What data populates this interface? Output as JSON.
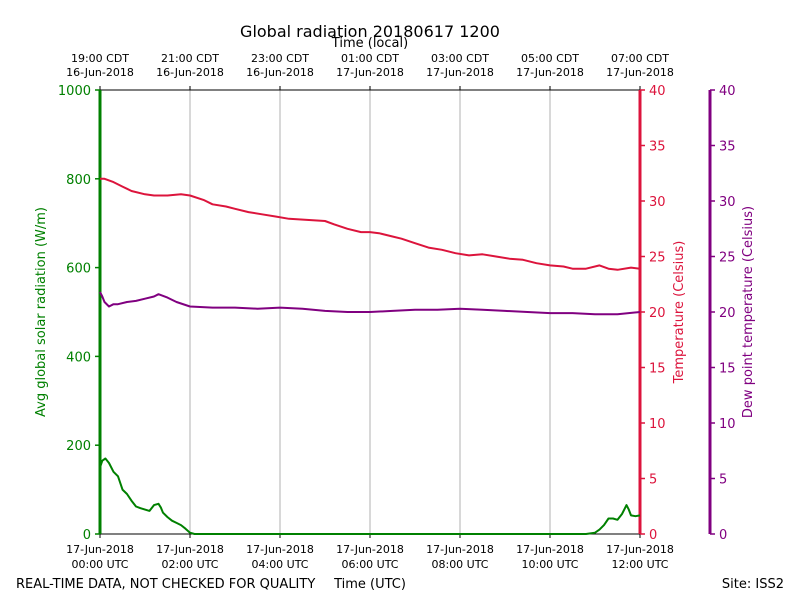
{
  "chart_data": {
    "type": "line",
    "title": "Global radiation 20180617 1200",
    "top_axis_label": "Time (local)",
    "xlabel": "Time (UTC)",
    "footer_left": "REAL-TIME DATA, NOT CHECKED FOR QUALITY",
    "footer_right": "Site: ISS2",
    "x_unit": "hours since 17-Jun-2018 00:00 UTC",
    "xlim": [
      0,
      12
    ],
    "bottom_ticks": [
      {
        "x": 0,
        "l1": "17-Jun-2018",
        "l2": "00:00 UTC"
      },
      {
        "x": 2,
        "l1": "17-Jun-2018",
        "l2": "02:00 UTC"
      },
      {
        "x": 4,
        "l1": "17-Jun-2018",
        "l2": "04:00 UTC"
      },
      {
        "x": 6,
        "l1": "17-Jun-2018",
        "l2": "06:00 UTC"
      },
      {
        "x": 8,
        "l1": "17-Jun-2018",
        "l2": "08:00 UTC"
      },
      {
        "x": 10,
        "l1": "17-Jun-2018",
        "l2": "10:00 UTC"
      },
      {
        "x": 12,
        "l1": "17-Jun-2018",
        "l2": "12:00 UTC"
      }
    ],
    "top_ticks": [
      {
        "x": 0,
        "l1": "19:00 CDT",
        "l2": "16-Jun-2018"
      },
      {
        "x": 2,
        "l1": "21:00 CDT",
        "l2": "16-Jun-2018"
      },
      {
        "x": 4,
        "l1": "23:00 CDT",
        "l2": "16-Jun-2018"
      },
      {
        "x": 6,
        "l1": "01:00 CDT",
        "l2": "17-Jun-2018"
      },
      {
        "x": 8,
        "l1": "03:00 CDT",
        "l2": "17-Jun-2018"
      },
      {
        "x": 10,
        "l1": "05:00 CDT",
        "l2": "17-Jun-2018"
      },
      {
        "x": 12,
        "l1": "07:00 CDT",
        "l2": "17-Jun-2018"
      }
    ],
    "axes": {
      "radiation": {
        "label": "Avg global solar radiation (W/m)",
        "ylim": [
          0,
          1000
        ],
        "ticks": [
          0,
          200,
          400,
          600,
          800,
          1000
        ],
        "color": "#008000"
      },
      "temperature": {
        "label": "Temperature (Celsius)",
        "ylim": [
          0,
          40
        ],
        "ticks": [
          0,
          5,
          10,
          15,
          20,
          25,
          30,
          35,
          40
        ],
        "color": "#dc143c"
      },
      "dewpoint": {
        "label": "Dew point temperature (Celsius)",
        "ylim": [
          0,
          40
        ],
        "ticks": [
          0,
          5,
          10,
          15,
          20,
          25,
          30,
          35,
          40
        ],
        "color": "#800080"
      }
    },
    "series": [
      {
        "name": "Global radiation",
        "axis": "radiation",
        "color": "#008000",
        "x": [
          0,
          0.05,
          0.12,
          0.2,
          0.3,
          0.4,
          0.5,
          0.6,
          0.7,
          0.8,
          0.9,
          1.0,
          1.1,
          1.2,
          1.3,
          1.35,
          1.4,
          1.5,
          1.6,
          1.7,
          1.8,
          1.9,
          2.0,
          2.1,
          2.2,
          2.5,
          3,
          4,
          5,
          6,
          7,
          8,
          9,
          10,
          10.8,
          11.0,
          11.1,
          11.2,
          11.3,
          11.4,
          11.5,
          11.6,
          11.7,
          11.75,
          11.8,
          11.9,
          12.0
        ],
        "y": [
          150,
          165,
          170,
          160,
          140,
          130,
          100,
          90,
          75,
          62,
          58,
          55,
          52,
          65,
          68,
          60,
          48,
          38,
          30,
          25,
          20,
          12,
          3,
          0,
          0,
          0,
          0,
          0,
          0,
          0,
          0,
          0,
          0,
          0,
          0,
          3,
          10,
          20,
          35,
          35,
          32,
          45,
          65,
          55,
          42,
          40,
          42
        ]
      },
      {
        "name": "Temperature",
        "axis": "temperature",
        "color": "#dc143c",
        "x": [
          0,
          0.1,
          0.3,
          0.5,
          0.7,
          1.0,
          1.2,
          1.5,
          1.8,
          2.0,
          2.3,
          2.5,
          2.8,
          3.0,
          3.3,
          3.6,
          3.9,
          4.2,
          4.6,
          5.0,
          5.2,
          5.5,
          5.8,
          6.0,
          6.2,
          6.5,
          6.7,
          7.0,
          7.3,
          7.6,
          7.9,
          8.2,
          8.5,
          8.8,
          9.1,
          9.4,
          9.7,
          10.0,
          10.3,
          10.5,
          10.8,
          11.1,
          11.3,
          11.5,
          11.8,
          12.0
        ],
        "y": [
          32.0,
          32.0,
          31.7,
          31.3,
          30.9,
          30.6,
          30.5,
          30.5,
          30.6,
          30.5,
          30.1,
          29.7,
          29.5,
          29.3,
          29.0,
          28.8,
          28.6,
          28.4,
          28.3,
          28.2,
          27.9,
          27.5,
          27.2,
          27.2,
          27.1,
          26.8,
          26.6,
          26.2,
          25.8,
          25.6,
          25.3,
          25.1,
          25.2,
          25.0,
          24.8,
          24.7,
          24.4,
          24.2,
          24.1,
          23.9,
          23.9,
          24.2,
          23.9,
          23.8,
          24.0,
          23.9
        ]
      },
      {
        "name": "Dew point",
        "axis": "dewpoint",
        "color": "#800080",
        "x": [
          0,
          0.05,
          0.1,
          0.2,
          0.3,
          0.4,
          0.6,
          0.8,
          1.0,
          1.2,
          1.3,
          1.5,
          1.7,
          2.0,
          2.5,
          3.0,
          3.5,
          4.0,
          4.5,
          5.0,
          5.5,
          6.0,
          6.5,
          7.0,
          7.5,
          8.0,
          8.5,
          9.0,
          9.5,
          10.0,
          10.5,
          11.0,
          11.5,
          12.0
        ],
        "y": [
          21.8,
          21.4,
          20.9,
          20.5,
          20.7,
          20.7,
          20.9,
          21.0,
          21.2,
          21.4,
          21.6,
          21.3,
          20.9,
          20.5,
          20.4,
          20.4,
          20.3,
          20.4,
          20.3,
          20.1,
          20.0,
          20.0,
          20.1,
          20.2,
          20.2,
          20.3,
          20.2,
          20.1,
          20.0,
          19.9,
          19.9,
          19.8,
          19.8,
          20.0
        ]
      }
    ]
  }
}
